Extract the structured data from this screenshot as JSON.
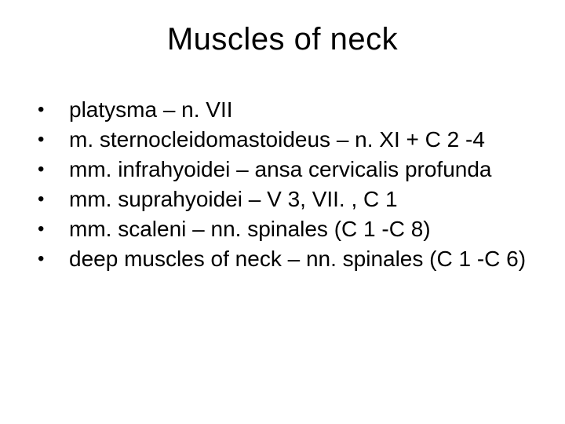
{
  "title": "Muscles of neck",
  "title_fontsize": 40,
  "title_color": "#000000",
  "body_fontsize": 28,
  "body_color": "#000000",
  "background_color": "#ffffff",
  "bullet_char": "•",
  "items": [
    "platysma – n. VII",
    "m. sternocleidomastoideus – n. XI + C 2 -4",
    "mm. infrahyoidei – ansa cervicalis profunda",
    "mm. suprahyoidei – V 3, VII. , C 1",
    "mm. scaleni – nn. spinales (C 1 -C 8)",
    "deep muscles of neck – nn. spinales (C 1 -C 6)"
  ]
}
